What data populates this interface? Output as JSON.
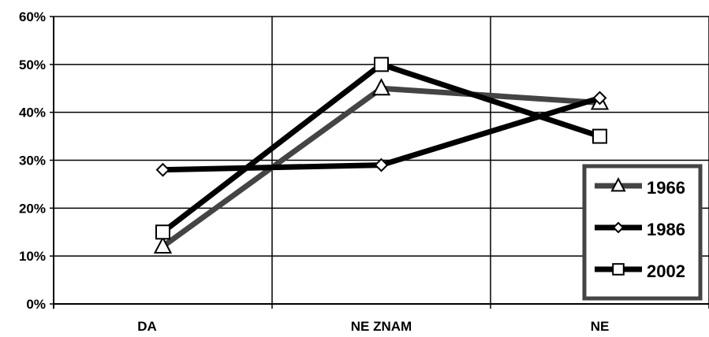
{
  "chart_data": {
    "type": "line",
    "title": "",
    "xlabel": "",
    "ylabel": "",
    "categories": [
      "DA",
      "NE ZNAM",
      "NE"
    ],
    "ylim": [
      0,
      60
    ],
    "y_ticks": [
      0,
      10,
      20,
      30,
      40,
      50,
      60
    ],
    "y_tick_labels": [
      "0%",
      "10%",
      "20%",
      "30%",
      "40%",
      "50%",
      "60%"
    ],
    "grid": true,
    "legend_position": "bottom-right",
    "series": [
      {
        "name": "1966",
        "values": [
          12,
          45,
          42
        ],
        "color": "#444444",
        "marker": "triangle"
      },
      {
        "name": "1986",
        "values": [
          28,
          29,
          43
        ],
        "color": "#000000",
        "marker": "diamond"
      },
      {
        "name": "2002",
        "values": [
          15,
          50,
          35
        ],
        "color": "#000000",
        "marker": "square"
      }
    ]
  }
}
